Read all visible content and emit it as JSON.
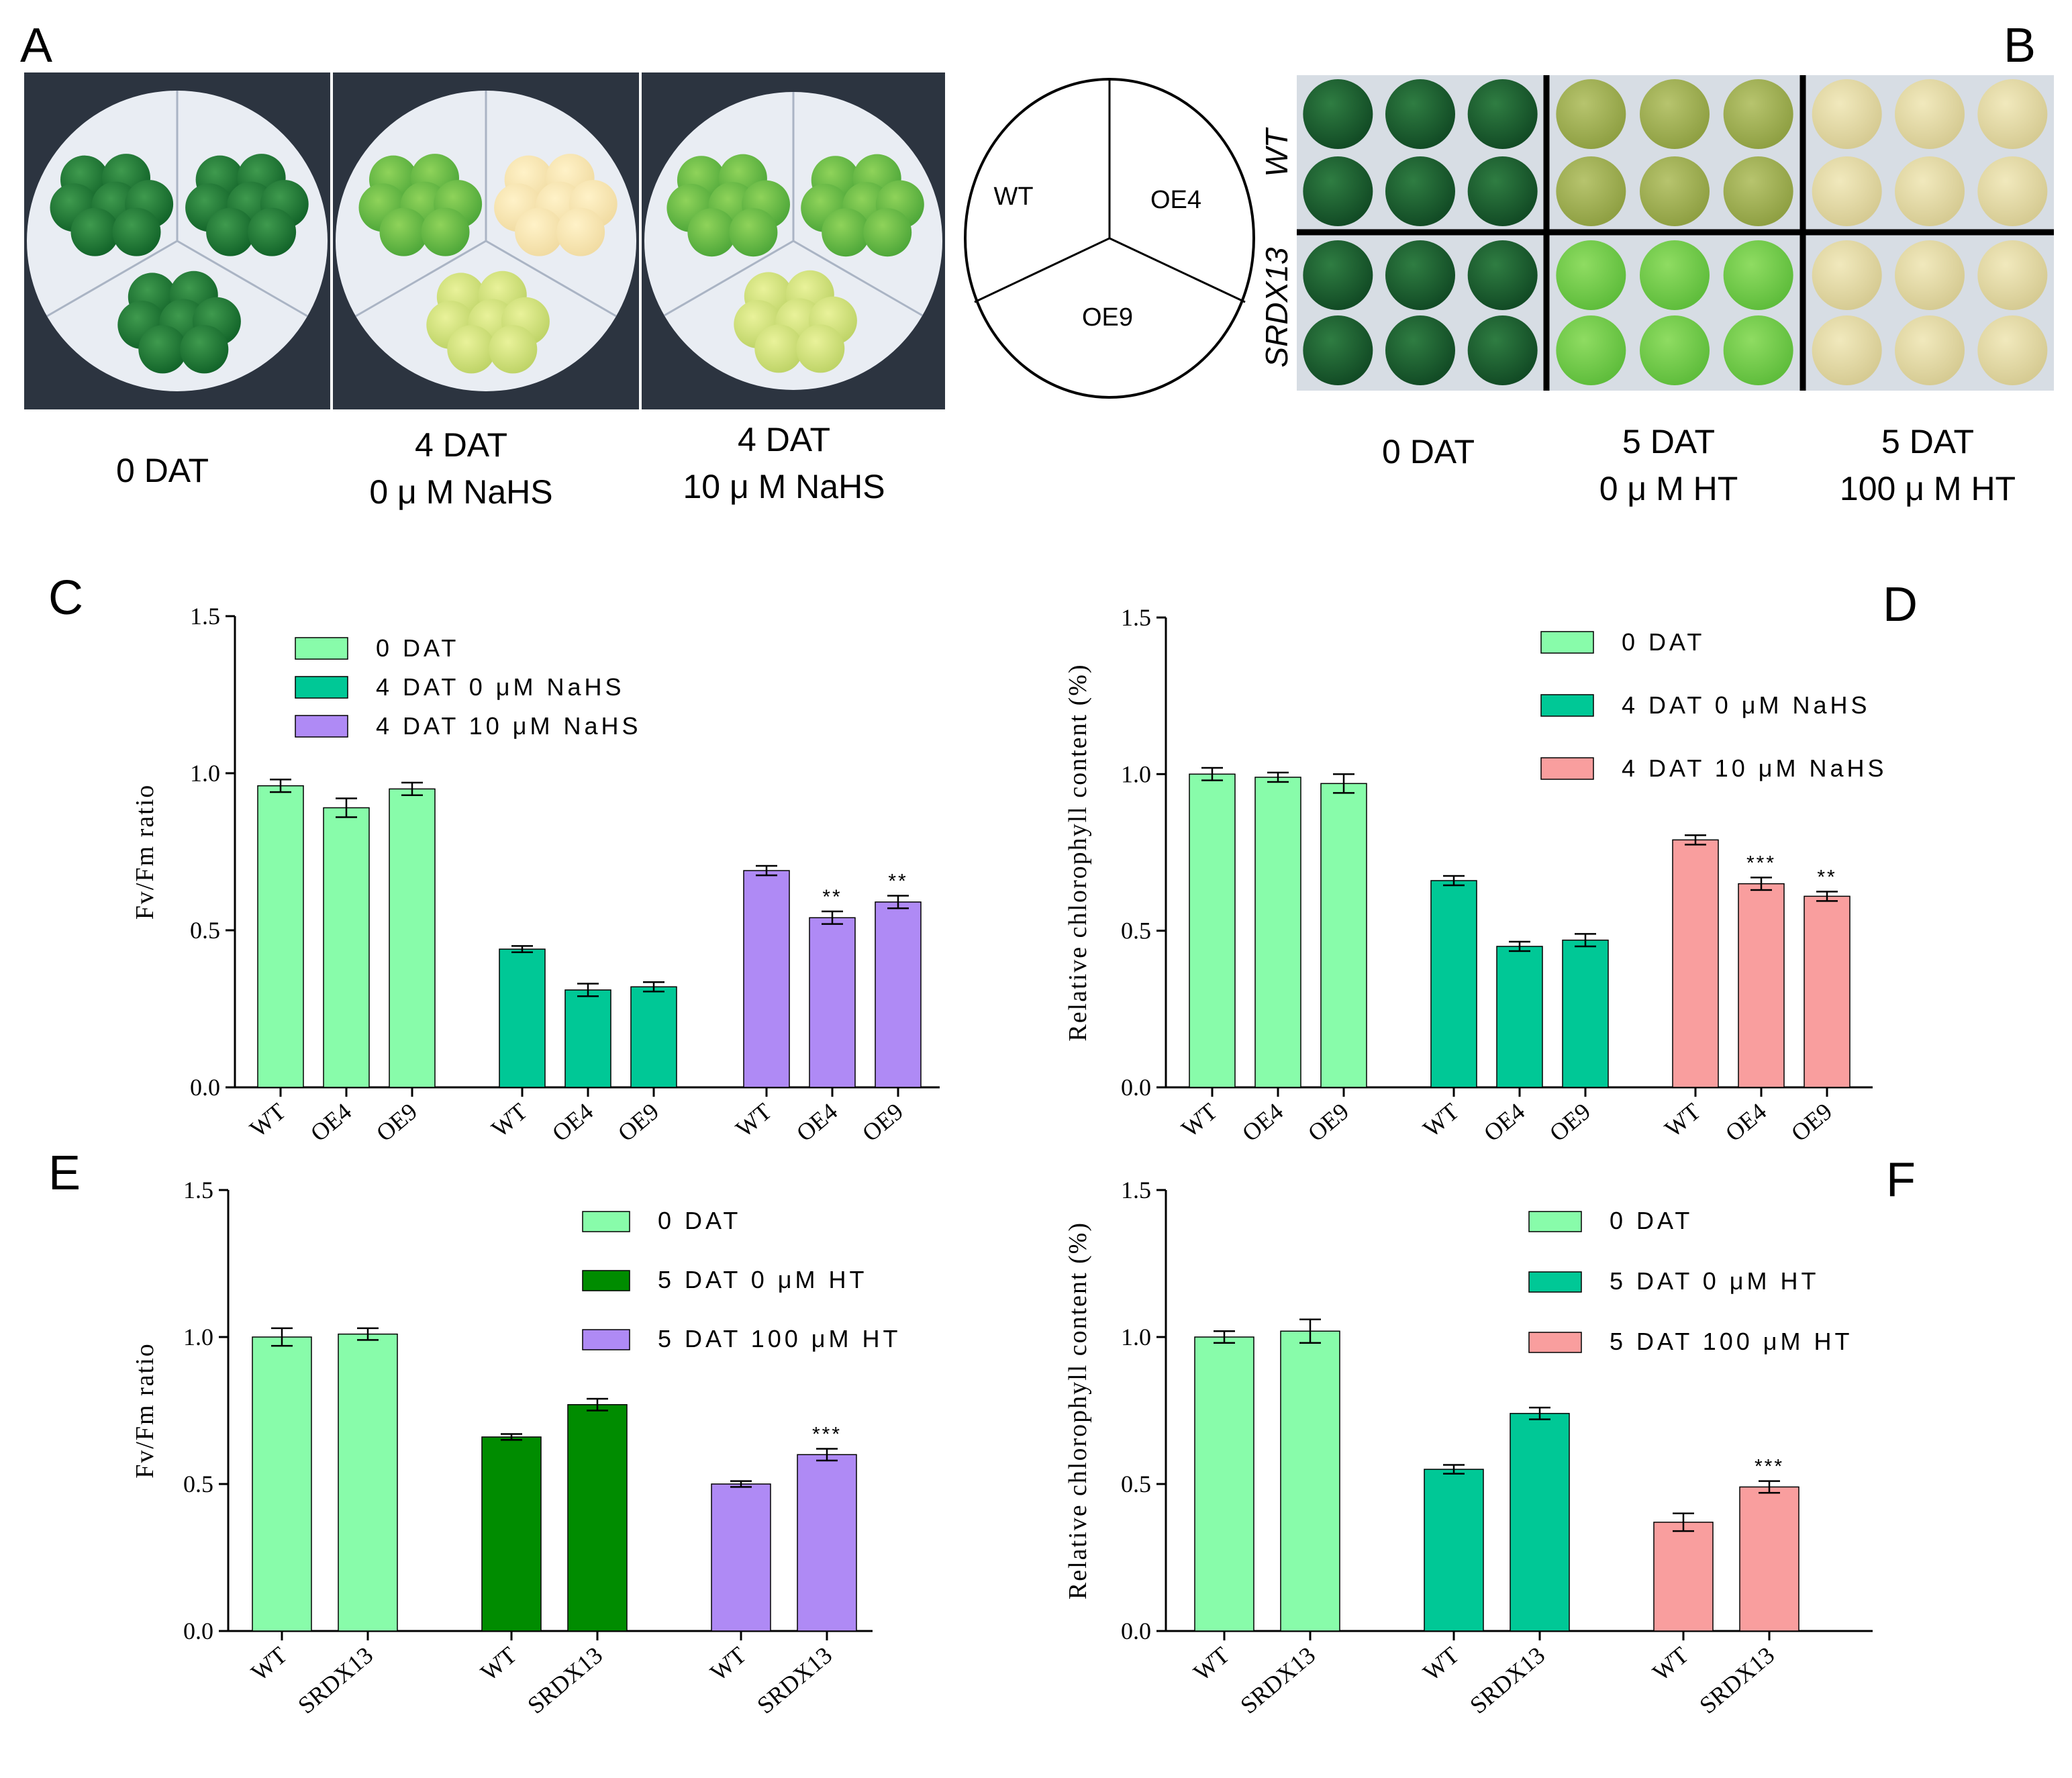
{
  "panels": {
    "A": {
      "letter": "A",
      "captions": [
        {
          "line1": "0 DAT",
          "line2": ""
        },
        {
          "line1": "4 DAT",
          "line2": "0 μ M  NaHS"
        },
        {
          "line1": "4 DAT",
          "line2": "10 μ M  NaHS"
        }
      ],
      "schema": {
        "wt": "WT",
        "oe4": "OE4",
        "oe9": "OE9"
      }
    },
    "B": {
      "letter": "B",
      "row_labels": [
        "WT",
        "SRDX13"
      ],
      "captions": [
        {
          "line1": "0 DAT",
          "line2": ""
        },
        {
          "line1": "5 DAT",
          "line2": "0 μ M  HT"
        },
        {
          "line1": "5 DAT",
          "line2": "100 μ M  HT"
        }
      ]
    }
  },
  "colors": {
    "light_green": "#88FCAA",
    "teal": "#00C896",
    "purple": "#AF8AF5",
    "pink": "#F99E9E",
    "dark_green": "#008C00",
    "dark_teal": "#00A678"
  },
  "chart_data": [
    {
      "panel": "C",
      "type": "bar",
      "ylabel": "Fv/Fm ratio",
      "ylim": [
        0,
        1.5
      ],
      "yticks": [
        "0.0",
        "0.5",
        "1.0",
        "1.5"
      ],
      "groups": [
        {
          "name": "0 DAT",
          "color": "#88FCAA",
          "categories": [
            "WT",
            "OE4",
            "OE9"
          ],
          "values": [
            0.96,
            0.89,
            0.95
          ],
          "errors": [
            0.02,
            0.03,
            0.02
          ],
          "sig": [
            "",
            "",
            ""
          ]
        },
        {
          "name": "4 DAT 0 μM NaHS",
          "color": "#00C896",
          "categories": [
            "WT",
            "OE4",
            "OE9"
          ],
          "values": [
            0.44,
            0.31,
            0.32
          ],
          "errors": [
            0.01,
            0.02,
            0.015
          ],
          "sig": [
            "",
            "",
            ""
          ]
        },
        {
          "name": "4 DAT 10 μM NaHS",
          "color": "#AF8AF5",
          "categories": [
            "WT",
            "OE4",
            "OE9"
          ],
          "values": [
            0.69,
            0.54,
            0.59
          ],
          "errors": [
            0.015,
            0.02,
            0.02
          ],
          "sig": [
            "",
            "**",
            "**"
          ]
        }
      ]
    },
    {
      "panel": "D",
      "type": "bar",
      "ylabel": "Relative chlorophyll content (%)",
      "ylim": [
        0,
        1.5
      ],
      "yticks": [
        "0.0",
        "0.5",
        "1.0",
        "1.5"
      ],
      "groups": [
        {
          "name": "0 DAT",
          "color": "#88FCAA",
          "categories": [
            "WT",
            "OE4",
            "OE9"
          ],
          "values": [
            1.0,
            0.99,
            0.97
          ],
          "errors": [
            0.02,
            0.015,
            0.03
          ],
          "sig": [
            "",
            "",
            ""
          ]
        },
        {
          "name": "4 DAT 0 μM NaHS",
          "color": "#00C896",
          "categories": [
            "WT",
            "OE4",
            "OE9"
          ],
          "values": [
            0.66,
            0.45,
            0.47
          ],
          "errors": [
            0.015,
            0.015,
            0.02
          ],
          "sig": [
            "",
            "",
            ""
          ]
        },
        {
          "name": "4 DAT 10 μM NaHS",
          "color": "#F99E9E",
          "categories": [
            "WT",
            "OE4",
            "OE9"
          ],
          "values": [
            0.79,
            0.65,
            0.61
          ],
          "errors": [
            0.015,
            0.02,
            0.015
          ],
          "sig": [
            "",
            "***",
            "**"
          ]
        }
      ]
    },
    {
      "panel": "E",
      "type": "bar",
      "ylabel": "Fv/Fm ratio",
      "ylim": [
        0,
        1.5
      ],
      "yticks": [
        "0.0",
        "0.5",
        "1.0",
        "1.5"
      ],
      "groups": [
        {
          "name": "0 DAT",
          "color": "#88FCAA",
          "categories": [
            "WT",
            "SRDX13"
          ],
          "values": [
            1.0,
            1.01
          ],
          "errors": [
            0.03,
            0.02
          ],
          "sig": [
            "",
            ""
          ]
        },
        {
          "name": "5 DAT 0 μM HT",
          "color": "#008C00",
          "categories": [
            "WT",
            "SRDX13"
          ],
          "values": [
            0.66,
            0.77
          ],
          "errors": [
            0.01,
            0.02
          ],
          "sig": [
            "",
            ""
          ]
        },
        {
          "name": "5 DAT 100 μM HT",
          "color": "#AF8AF5",
          "categories": [
            "WT",
            "SRDX13"
          ],
          "values": [
            0.5,
            0.6
          ],
          "errors": [
            0.01,
            0.02
          ],
          "sig": [
            "",
            "***"
          ]
        }
      ]
    },
    {
      "panel": "F",
      "type": "bar",
      "ylabel": "Relative chlorophyll content (%)",
      "ylim": [
        0,
        1.5
      ],
      "yticks": [
        "0.0",
        "0.5",
        "1.0",
        "1.5"
      ],
      "groups": [
        {
          "name": "0 DAT",
          "color": "#88FCAA",
          "categories": [
            "WT",
            "SRDX13"
          ],
          "values": [
            1.0,
            1.02
          ],
          "errors": [
            0.02,
            0.04
          ],
          "sig": [
            "",
            ""
          ]
        },
        {
          "name": "5 DAT 0 μM HT",
          "color": "#00C896",
          "categories": [
            "WT",
            "SRDX13"
          ],
          "values": [
            0.55,
            0.74
          ],
          "errors": [
            0.015,
            0.02
          ],
          "sig": [
            "",
            ""
          ]
        },
        {
          "name": "5 DAT 100 μM HT",
          "color": "#F99E9E",
          "categories": [
            "WT",
            "SRDX13"
          ],
          "values": [
            0.37,
            0.49
          ],
          "errors": [
            0.03,
            0.02
          ],
          "sig": [
            "",
            "***"
          ]
        }
      ]
    }
  ]
}
